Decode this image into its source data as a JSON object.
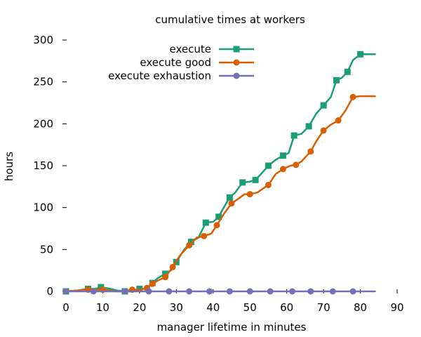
{
  "chart_data": {
    "type": "line",
    "title": "cumulative times at workers",
    "xlabel": "manager lifetime in minutes",
    "ylabel": "hours",
    "xlim": [
      0,
      90
    ],
    "ylim": [
      0,
      300
    ],
    "xticks": [
      0,
      10,
      20,
      30,
      40,
      50,
      60,
      70,
      80,
      90
    ],
    "yticks": [
      0,
      50,
      100,
      150,
      200,
      250,
      300
    ],
    "xtick_labels": [
      "0",
      "10",
      "20",
      "30",
      "40",
      "50",
      "60",
      "70",
      "80",
      "90"
    ],
    "ytick_labels": [
      "0",
      "50",
      "100",
      "150",
      "200",
      "250",
      "300"
    ],
    "grid": false,
    "legend_position": "top-right",
    "series": [
      {
        "name": "execute",
        "color": "#1b9e77",
        "marker": "square",
        "x": [
          0,
          3,
          6,
          8,
          9.5,
          12,
          14,
          16,
          18,
          20,
          22,
          23.5,
          25,
          27,
          28.5,
          30,
          32,
          34,
          36,
          38,
          40,
          41.5,
          43,
          44.5,
          46,
          48,
          50,
          51.5,
          53,
          55,
          57,
          59,
          60.5,
          62,
          64,
          66,
          68,
          70,
          72,
          73.5,
          75,
          76.5,
          78,
          80,
          82,
          84
        ],
        "y": [
          0,
          1,
          3,
          3,
          5,
          3,
          1,
          0,
          0,
          3,
          3,
          10,
          16,
          21,
          25,
          35,
          49,
          59,
          64,
          82,
          83,
          89,
          101,
          112,
          118,
          130,
          131,
          133,
          140,
          150,
          157,
          162,
          165,
          186,
          188,
          197,
          212,
          222,
          232,
          252,
          255,
          262,
          276,
          283,
          283,
          283
        ]
      },
      {
        "name": "execute good",
        "color": "#d95f02",
        "marker": "circle",
        "x": [
          0,
          3,
          6,
          8,
          10,
          12,
          14,
          16,
          18,
          20,
          22,
          23.5,
          25,
          27,
          29,
          31,
          33.5,
          35.5,
          37.5,
          39.5,
          41,
          43,
          45,
          47,
          48.5,
          50,
          52,
          55,
          57,
          59,
          61,
          62.5,
          64,
          66.5,
          68,
          70,
          72,
          74,
          76,
          78,
          80,
          82,
          84
        ],
        "y": [
          0,
          1,
          2,
          2,
          2,
          1,
          0,
          0,
          2,
          2,
          4,
          9,
          13,
          17,
          29,
          43,
          55,
          64,
          66,
          69,
          79,
          93,
          105,
          111,
          116,
          116,
          118,
          127,
          140,
          146,
          150,
          151,
          155,
          167,
          179,
          192,
          199,
          204,
          216,
          232,
          233,
          233,
          233
        ]
      },
      {
        "name": "execute exhaustion",
        "color": "#7570b3",
        "marker": "circle",
        "x": [
          0,
          7.5,
          16,
          22.5,
          28,
          33.5,
          39,
          44.5,
          50,
          55.5,
          61.5,
          66.5,
          72.5,
          78,
          84
        ],
        "y": [
          0,
          0,
          0,
          0,
          0,
          0,
          0,
          0,
          0,
          0,
          0,
          0,
          0,
          0,
          0
        ]
      }
    ],
    "markers": [
      {
        "series": 0,
        "x": [
          0,
          6,
          9.5,
          16,
          20,
          23.5,
          27,
          30,
          34,
          38,
          41.5,
          44.5,
          48,
          51.5,
          55,
          59,
          62,
          66,
          70,
          73.5,
          76.5,
          80
        ]
      },
      {
        "series": 1,
        "x": [
          0,
          6,
          10,
          18,
          22,
          23.5,
          27,
          29,
          33.5,
          37.5,
          41,
          45,
          50,
          55,
          59,
          62.5,
          66.5,
          70,
          74,
          78
        ]
      },
      {
        "series": 2,
        "x": [
          0,
          7.5,
          16,
          22.5,
          28,
          33.5,
          39,
          44.5,
          50,
          55.5,
          61.5,
          66.5,
          72.5,
          78
        ]
      }
    ]
  }
}
